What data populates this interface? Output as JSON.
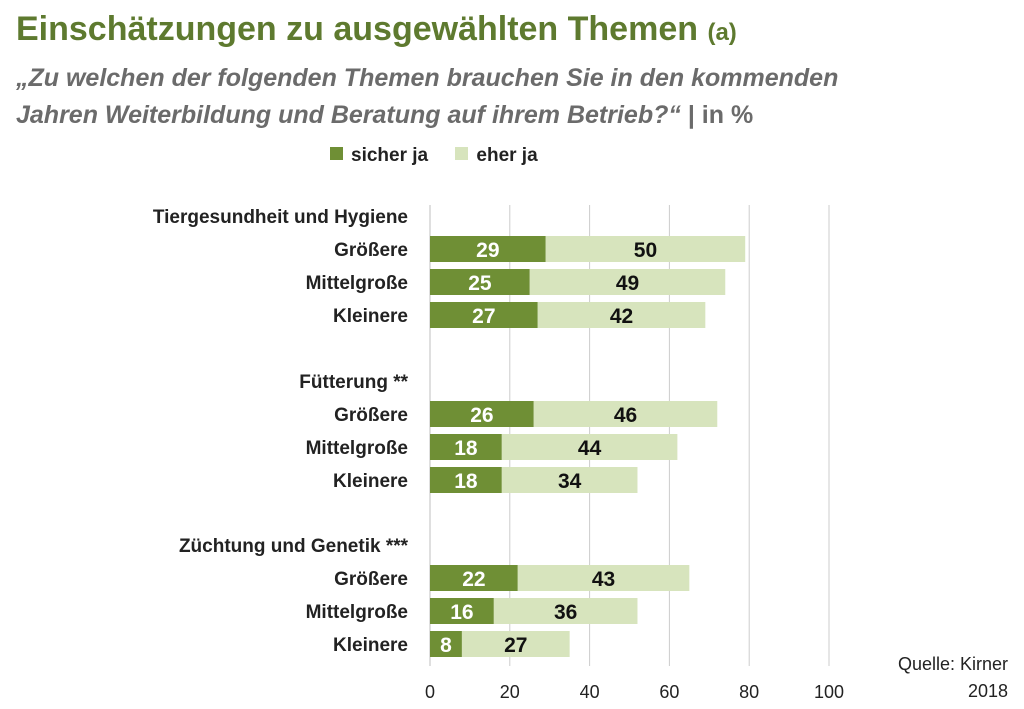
{
  "colors": {
    "sicher_ja": "#6f8f35",
    "eher_ja": "#d7e4bd",
    "title": "#5e7a2f",
    "subtitle": "#6b6b6b",
    "grid": "#cccccc"
  },
  "header": {
    "title": "Einschätzungen zu ausgewählten Themen",
    "title_suffix": "(a)",
    "subtitle_line1": "„Zu welchen der folgenden Themen brauchen Sie in den kommenden",
    "subtitle_line2": "Jahren Weiterbildung und Beratung auf ihrem Betrieb?“",
    "subtitle_sep": " | ",
    "subtitle_unit": "in %"
  },
  "legend": {
    "items": [
      "sicher ja",
      "eher ja"
    ]
  },
  "source": {
    "line1": "Quelle: Kirner",
    "line2": "2018"
  },
  "chart_data": {
    "type": "bar",
    "orientation": "horizontal",
    "stacked": true,
    "title": "Einschätzungen zu ausgewählten Themen (a)",
    "xlabel": "",
    "ylabel": "",
    "xlim": [
      0,
      100
    ],
    "xticks": [
      0,
      20,
      40,
      60,
      80,
      100
    ],
    "grid": true,
    "legend_position": "top",
    "series_names": [
      "sicher ja",
      "eher ja"
    ],
    "groups": [
      {
        "name": "Tiergesundheit und Hygiene",
        "rows": [
          {
            "label": "Größere",
            "sicher_ja": 29,
            "eher_ja": 50
          },
          {
            "label": "Mittelgroße",
            "sicher_ja": 25,
            "eher_ja": 49
          },
          {
            "label": "Kleinere",
            "sicher_ja": 27,
            "eher_ja": 42
          }
        ]
      },
      {
        "name": "Fütterung **",
        "rows": [
          {
            "label": "Größere",
            "sicher_ja": 26,
            "eher_ja": 46
          },
          {
            "label": "Mittelgroße",
            "sicher_ja": 18,
            "eher_ja": 44
          },
          {
            "label": "Kleinere",
            "sicher_ja": 18,
            "eher_ja": 34
          }
        ]
      },
      {
        "name": "Züchtung und Genetik ***",
        "rows": [
          {
            "label": "Größere",
            "sicher_ja": 22,
            "eher_ja": 43
          },
          {
            "label": "Mittelgroße",
            "sicher_ja": 16,
            "eher_ja": 36
          },
          {
            "label": "Kleinere",
            "sicher_ja": 8,
            "eher_ja": 27
          }
        ]
      }
    ]
  }
}
